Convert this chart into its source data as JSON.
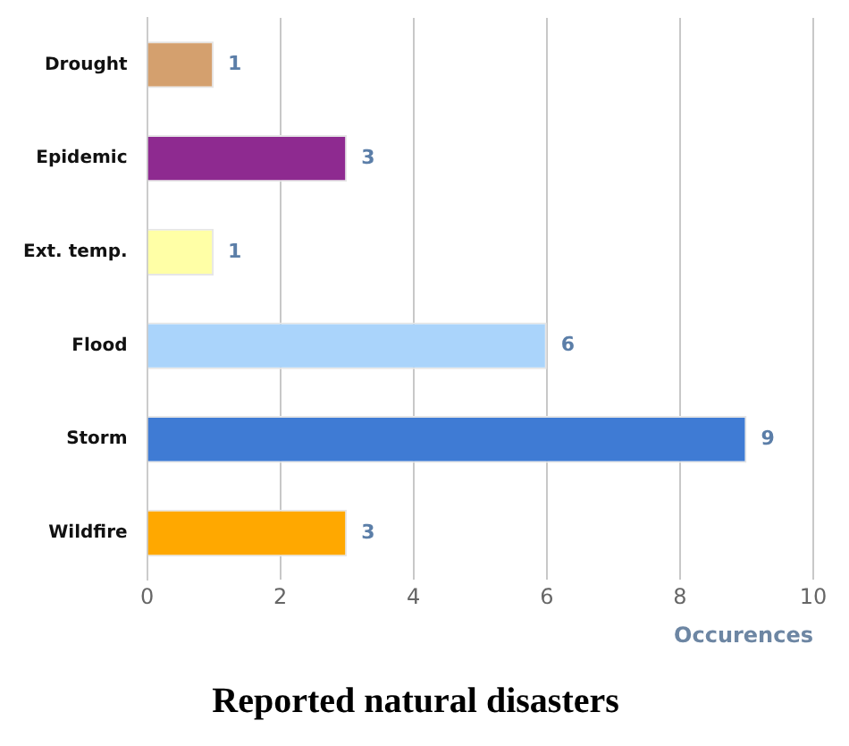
{
  "chart_data": {
    "type": "bar",
    "orientation": "horizontal",
    "title": "Reported natural disasters",
    "xlabel": "Occurences",
    "categories": [
      "Drought",
      "Epidemic",
      "Ext. temp.",
      "Flood",
      "Storm",
      "Wildfire"
    ],
    "values": [
      1,
      3,
      1,
      6,
      9,
      3
    ],
    "colors": [
      "#d4a06e",
      "#8e2a90",
      "#ffffa6",
      "#aad4fb",
      "#3f7bd4",
      "#ffa800"
    ],
    "xlim": [
      0,
      10
    ],
    "xticks": [
      0,
      2,
      4,
      6,
      8,
      10
    ],
    "grid": "x",
    "legend": false,
    "data_labels": true
  }
}
